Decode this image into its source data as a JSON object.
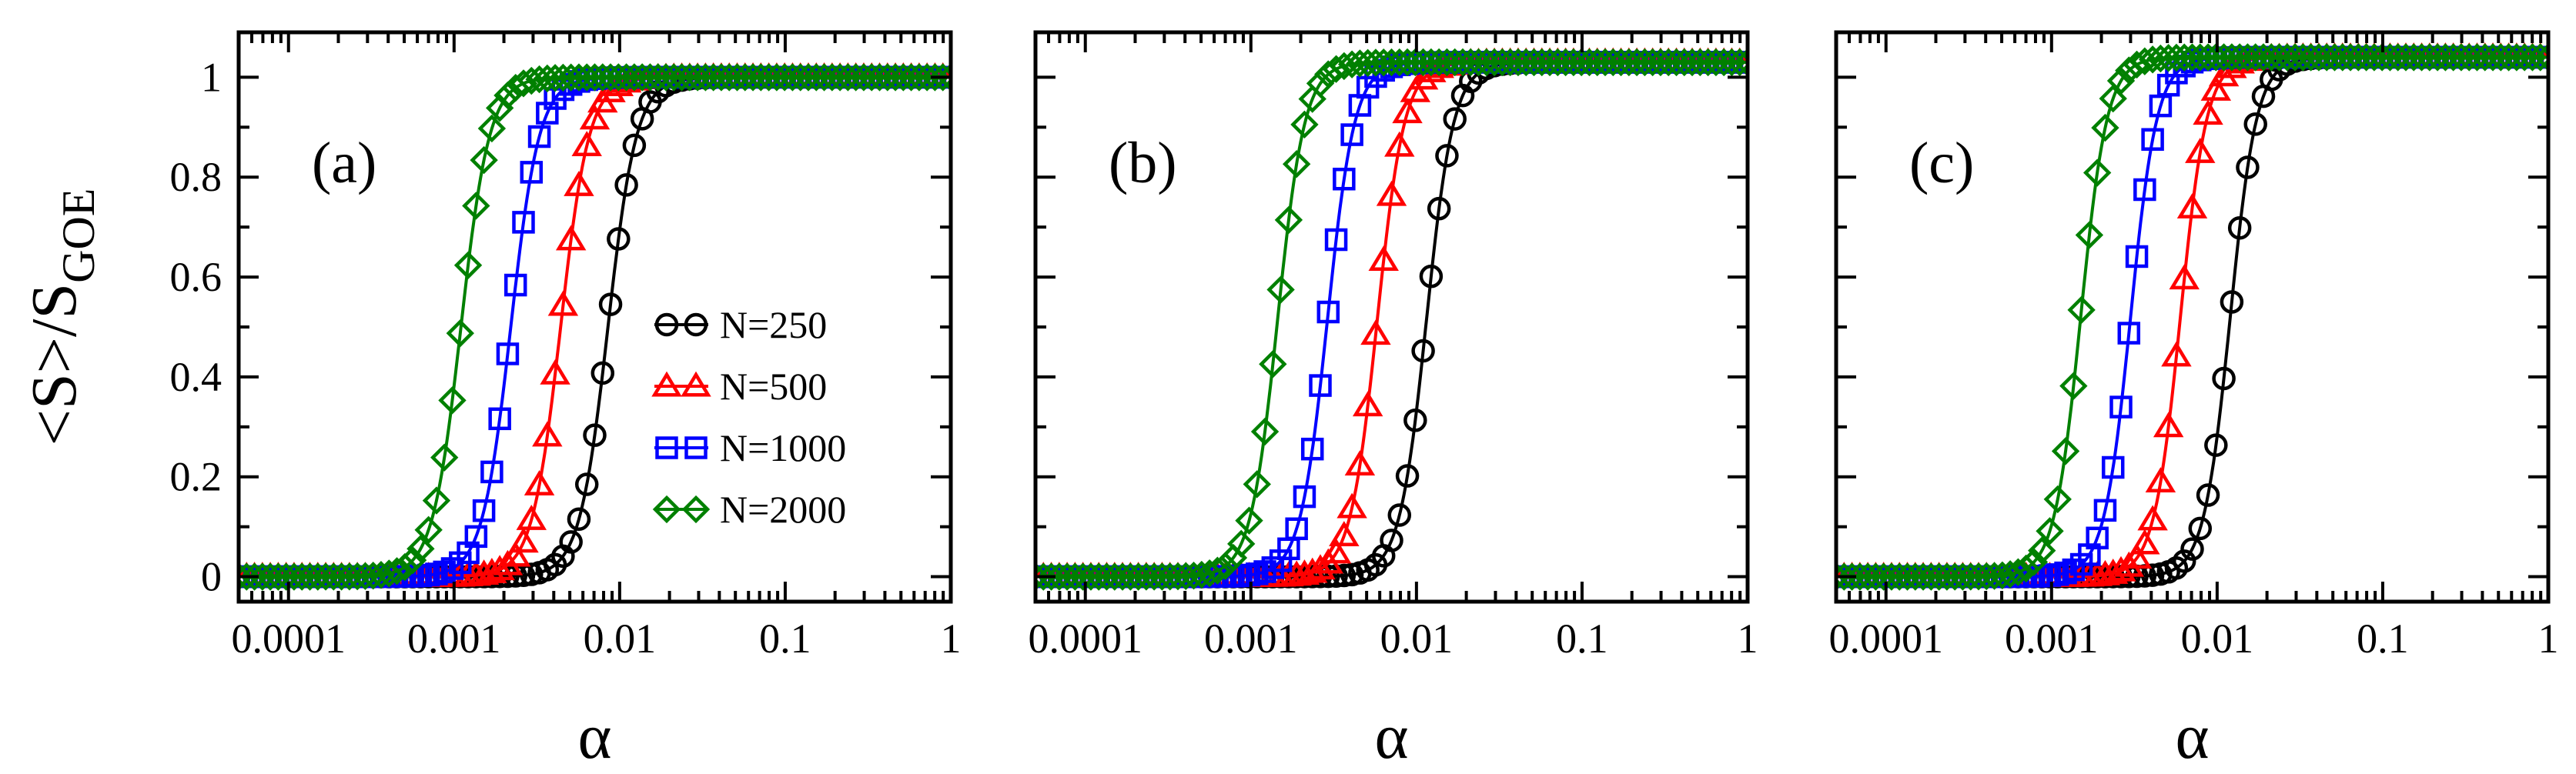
{
  "chart_data": {
    "type": "line",
    "panel_count": 3,
    "ylabel": "<S>/S",
    "ylabel_subscript": "GOE",
    "xlabel": "α",
    "xscale": "log",
    "xlim": [
      5e-05,
      1.0
    ],
    "ylim": [
      -0.05,
      1.09
    ],
    "x_tick_values": [
      0.0001,
      0.001,
      0.01,
      0.1,
      1
    ],
    "x_tick_labels": [
      "0.0001",
      "0.001",
      "0.01",
      "0.1",
      "1"
    ],
    "y_tick_values": [
      0,
      0.2,
      0.4,
      0.6,
      0.8,
      1
    ],
    "y_tick_labels": [
      "0",
      "0.2",
      "0.4",
      "0.6",
      "0.8",
      "1"
    ],
    "legend_panel": 0,
    "legend_position": "center-right",
    "series_styles": [
      {
        "name": "N=250",
        "color": "#000000",
        "marker": "circle"
      },
      {
        "name": "N=500",
        "color": "#ff0000",
        "marker": "triangle"
      },
      {
        "name": "N=1000",
        "color": "#0000ff",
        "marker": "square"
      },
      {
        "name": "N=2000",
        "color": "#008000",
        "marker": "diamond"
      }
    ],
    "panels": [
      {
        "label": "(a)",
        "series": [
          {
            "name": "N=250",
            "alpha_half": 0.0085,
            "width": 0.82,
            "plateau": 1.0
          },
          {
            "name": "N=500",
            "alpha_half": 0.0044,
            "width": 0.82,
            "plateau": 1.0
          },
          {
            "name": "N=1000",
            "alpha_half": 0.0022,
            "width": 0.82,
            "plateau": 1.0
          },
          {
            "name": "N=2000",
            "alpha_half": 0.0011,
            "width": 0.82,
            "plateau": 1.0
          }
        ]
      },
      {
        "label": "(b)",
        "series": [
          {
            "name": "N=250",
            "alpha_half": 0.0115,
            "width": 0.78,
            "plateau": 1.03
          },
          {
            "name": "N=500",
            "alpha_half": 0.0058,
            "width": 0.78,
            "plateau": 1.03
          },
          {
            "name": "N=1000",
            "alpha_half": 0.0029,
            "width": 0.78,
            "plateau": 1.03
          },
          {
            "name": "N=2000",
            "alpha_half": 0.00145,
            "width": 0.78,
            "plateau": 1.03
          }
        ]
      },
      {
        "label": "(c)",
        "series": [
          {
            "name": "N=250",
            "alpha_half": 0.012,
            "width": 0.76,
            "plateau": 1.04
          },
          {
            "name": "N=500",
            "alpha_half": 0.006,
            "width": 0.76,
            "plateau": 1.04
          },
          {
            "name": "N=1000",
            "alpha_half": 0.003,
            "width": 0.76,
            "plateau": 1.04
          },
          {
            "name": "N=2000",
            "alpha_half": 0.0015,
            "width": 0.76,
            "plateau": 1.04
          }
        ]
      }
    ]
  }
}
